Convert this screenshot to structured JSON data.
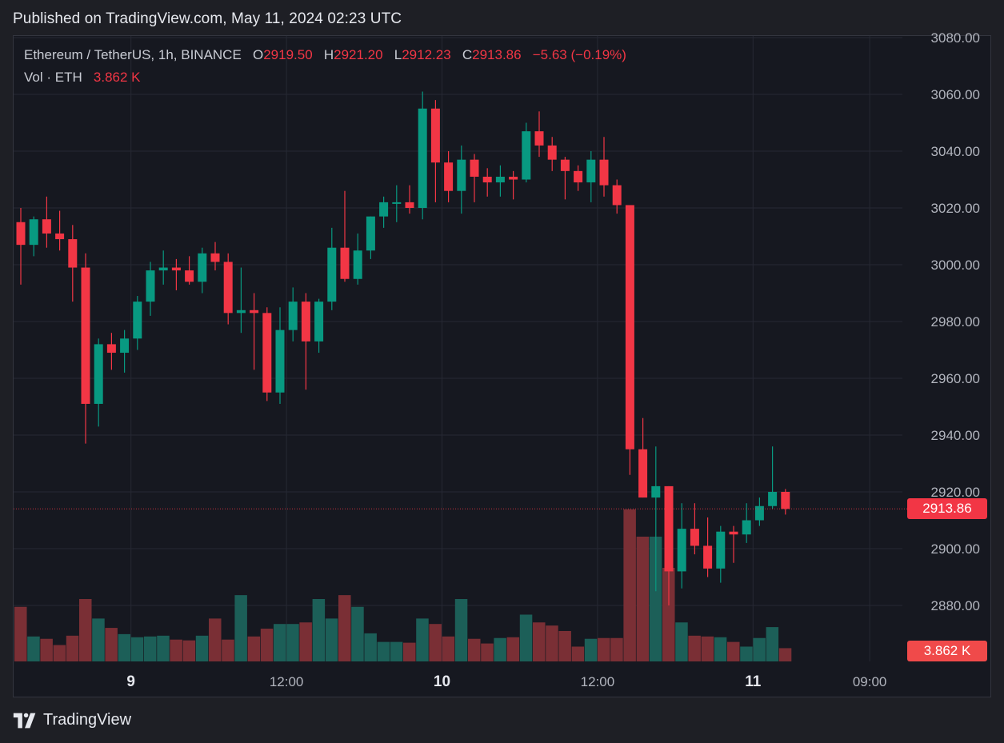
{
  "header": {
    "published": "Published on TradingView.com, May 11, 2024 02:23 UTC"
  },
  "legend": {
    "symbol": "Ethereum / TetherUS, 1h, BINANCE",
    "o_label": "O",
    "o_value": "2919.50",
    "h_label": "H",
    "h_value": "2921.20",
    "l_label": "L",
    "l_value": "2912.23",
    "c_label": "C",
    "c_value": "2913.86",
    "change": "−5.63 (−0.19%)",
    "vol_label": "Vol · ETH",
    "vol_value": "3.862 K"
  },
  "price_tag": {
    "last": "2913.86",
    "volume": "3.862 K"
  },
  "footer": {
    "brand": "TradingView"
  },
  "colors": {
    "up": "#089981",
    "down": "#f23645",
    "vol_up": "#1c5f58",
    "vol_down": "#7a2f35",
    "grid": "#262833",
    "axis_text": "#b2b5be"
  },
  "icons": [
    "tradingview-logo-icon"
  ],
  "chart_data": {
    "type": "candlestick",
    "symbol": "ETHUSDT",
    "interval": "1h",
    "ylim": [
      2860,
      3085
    ],
    "y_ticks": [
      "3080.00",
      "3060.00",
      "3040.00",
      "3020.00",
      "3000.00",
      "2980.00",
      "2960.00",
      "2940.00",
      "2920.00",
      "2900.00",
      "2880.00"
    ],
    "x_ticks": [
      {
        "label": "9",
        "index": 8.5,
        "bold": true
      },
      {
        "label": "12:00",
        "index": 20.5,
        "bold": false
      },
      {
        "label": "10",
        "index": 32.5,
        "bold": true
      },
      {
        "label": "12:00",
        "index": 44.5,
        "bold": false
      },
      {
        "label": "11",
        "index": 56.5,
        "bold": true
      },
      {
        "label": "09:00",
        "index": 65.5,
        "bold": false
      }
    ],
    "candles": [
      {
        "o": 3015,
        "h": 3020,
        "l": 2993,
        "c": 3007
      },
      {
        "o": 3007,
        "h": 3017,
        "l": 3003,
        "c": 3016
      },
      {
        "o": 3016,
        "h": 3024,
        "l": 3006,
        "c": 3011
      },
      {
        "o": 3011,
        "h": 3019,
        "l": 3005,
        "c": 3009
      },
      {
        "o": 3009,
        "h": 3014,
        "l": 2987,
        "c": 2999
      },
      {
        "o": 2999,
        "h": 3004,
        "l": 2937,
        "c": 2951
      },
      {
        "o": 2951,
        "h": 2974,
        "l": 2943,
        "c": 2972
      },
      {
        "o": 2972,
        "h": 2976,
        "l": 2963,
        "c": 2969
      },
      {
        "o": 2969,
        "h": 2977,
        "l": 2962,
        "c": 2974
      },
      {
        "o": 2974,
        "h": 2989,
        "l": 2970,
        "c": 2987
      },
      {
        "o": 2987,
        "h": 3001,
        "l": 2982,
        "c": 2998
      },
      {
        "o": 2998,
        "h": 3005,
        "l": 2993,
        "c": 2999
      },
      {
        "o": 2999,
        "h": 3002,
        "l": 2991,
        "c": 2998
      },
      {
        "o": 2998,
        "h": 3003,
        "l": 2993,
        "c": 2994
      },
      {
        "o": 2994,
        "h": 3006,
        "l": 2990,
        "c": 3004
      },
      {
        "o": 3004,
        "h": 3008,
        "l": 2998,
        "c": 3001
      },
      {
        "o": 3001,
        "h": 3004,
        "l": 2979,
        "c": 2983
      },
      {
        "o": 2983,
        "h": 2999,
        "l": 2976,
        "c": 2984
      },
      {
        "o": 2984,
        "h": 2990,
        "l": 2963,
        "c": 2983
      },
      {
        "o": 2983,
        "h": 2985,
        "l": 2952,
        "c": 2955
      },
      {
        "o": 2955,
        "h": 2985,
        "l": 2951,
        "c": 2977
      },
      {
        "o": 2977,
        "h": 2992,
        "l": 2973,
        "c": 2987
      },
      {
        "o": 2987,
        "h": 2990,
        "l": 2956,
        "c": 2973
      },
      {
        "o": 2973,
        "h": 2988,
        "l": 2969,
        "c": 2987
      },
      {
        "o": 2987,
        "h": 3013,
        "l": 2984,
        "c": 3006
      },
      {
        "o": 3006,
        "h": 3026,
        "l": 2994,
        "c": 2995
      },
      {
        "o": 2995,
        "h": 3011,
        "l": 2993,
        "c": 3005
      },
      {
        "o": 3005,
        "h": 3017,
        "l": 3002,
        "c": 3017
      },
      {
        "o": 3017,
        "h": 3024,
        "l": 3013,
        "c": 3022
      },
      {
        "o": 3022,
        "h": 3028,
        "l": 3015,
        "c": 3022
      },
      {
        "o": 3022,
        "h": 3028,
        "l": 3018,
        "c": 3020
      },
      {
        "o": 3020,
        "h": 3061,
        "l": 3016,
        "c": 3055
      },
      {
        "o": 3055,
        "h": 3058,
        "l": 3022,
        "c": 3036
      },
      {
        "o": 3036,
        "h": 3040,
        "l": 3022,
        "c": 3026
      },
      {
        "o": 3026,
        "h": 3042,
        "l": 3018,
        "c": 3037
      },
      {
        "o": 3037,
        "h": 3039,
        "l": 3022,
        "c": 3031
      },
      {
        "o": 3031,
        "h": 3034,
        "l": 3024,
        "c": 3029
      },
      {
        "o": 3029,
        "h": 3035,
        "l": 3024,
        "c": 3031
      },
      {
        "o": 3031,
        "h": 3033,
        "l": 3023,
        "c": 3030
      },
      {
        "o": 3030,
        "h": 3050,
        "l": 3029,
        "c": 3047
      },
      {
        "o": 3047,
        "h": 3054,
        "l": 3038,
        "c": 3042
      },
      {
        "o": 3042,
        "h": 3045,
        "l": 3033,
        "c": 3037
      },
      {
        "o": 3037,
        "h": 3038,
        "l": 3023,
        "c": 3033
      },
      {
        "o": 3033,
        "h": 3035,
        "l": 3026,
        "c": 3029
      },
      {
        "o": 3029,
        "h": 3040,
        "l": 3022,
        "c": 3037
      },
      {
        "o": 3037,
        "h": 3045,
        "l": 3024,
        "c": 3028
      },
      {
        "o": 3028,
        "h": 3030,
        "l": 3018,
        "c": 3021
      },
      {
        "o": 3021,
        "h": 3021,
        "l": 2926,
        "c": 2935
      },
      {
        "o": 2935,
        "h": 2946,
        "l": 2918,
        "c": 2918
      },
      {
        "o": 2918,
        "h": 2936,
        "l": 2885,
        "c": 2922
      },
      {
        "o": 2922,
        "h": 2922,
        "l": 2880,
        "c": 2892
      },
      {
        "o": 2892,
        "h": 2916,
        "l": 2886,
        "c": 2907
      },
      {
        "o": 2907,
        "h": 2916,
        "l": 2898,
        "c": 2901
      },
      {
        "o": 2901,
        "h": 2911,
        "l": 2890,
        "c": 2893
      },
      {
        "o": 2893,
        "h": 2908,
        "l": 2888,
        "c": 2906
      },
      {
        "o": 2906,
        "h": 2908,
        "l": 2895,
        "c": 2905
      },
      {
        "o": 2905,
        "h": 2916,
        "l": 2902,
        "c": 2910
      },
      {
        "o": 2910,
        "h": 2918,
        "l": 2908,
        "c": 2915
      },
      {
        "o": 2915,
        "h": 2936,
        "l": 2914,
        "c": 2920
      },
      {
        "o": 2920,
        "h": 2921,
        "l": 2912,
        "c": 2914
      }
    ],
    "volume_max_k": 40,
    "volumes": [
      14,
      6.4,
      5.8,
      4.2,
      6.6,
      16,
      11,
      8.6,
      7,
      6.2,
      6.4,
      6.6,
      5.6,
      5.4,
      6.6,
      11,
      5.6,
      17,
      6.4,
      8.4,
      9.6,
      9.6,
      10,
      16,
      11,
      17,
      14,
      7.2,
      5,
      5,
      4.8,
      11,
      9.6,
      6.4,
      16,
      5.8,
      4.6,
      6,
      6.2,
      12,
      10,
      9.2,
      7.8,
      3.8,
      5.8,
      6,
      6,
      39,
      32,
      32,
      24,
      10,
      6.6,
      6.4,
      6.2,
      5,
      3.8,
      6,
      8.8,
      3.4
    ]
  }
}
